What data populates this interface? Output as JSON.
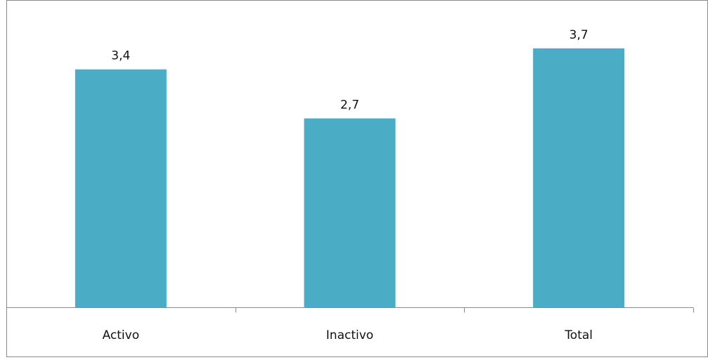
{
  "chart_data": {
    "type": "bar",
    "categories": [
      "Activo",
      "Inactivo",
      "Total"
    ],
    "values": [
      3.4,
      2.7,
      3.7
    ],
    "value_labels": [
      "3,4",
      "2,7",
      "3,7"
    ],
    "title": "",
    "xlabel": "",
    "ylabel": "",
    "ylim": [
      0,
      4.35
    ],
    "grid": false,
    "legend": "none",
    "bar_color": "#4BACC6"
  }
}
